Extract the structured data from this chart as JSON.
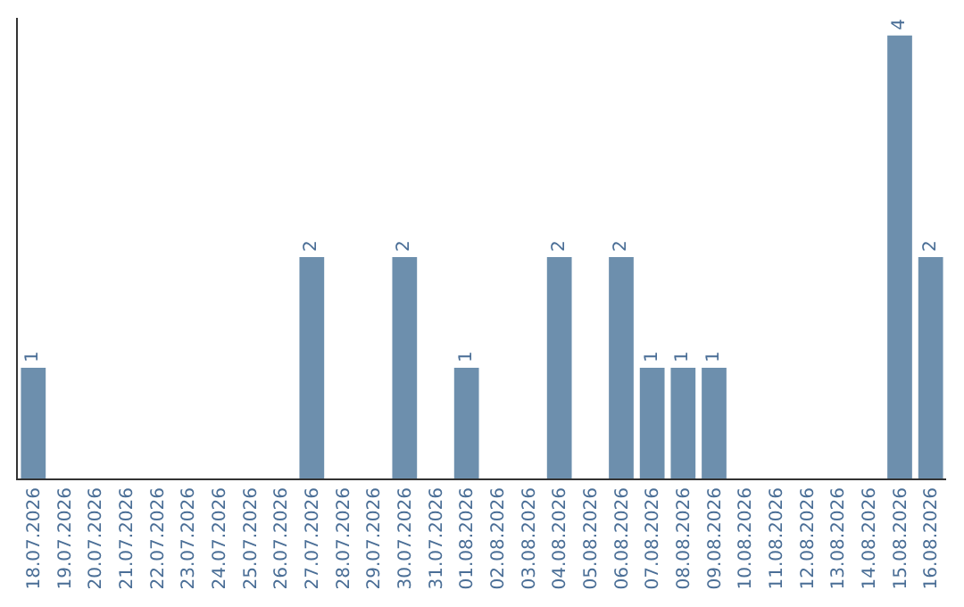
{
  "chart_data": {
    "type": "bar",
    "categories": [
      "18.07.2026",
      "19.07.2026",
      "20.07.2026",
      "21.07.2026",
      "22.07.2026",
      "23.07.2026",
      "24.07.2026",
      "25.07.2026",
      "26.07.2026",
      "27.07.2026",
      "28.07.2026",
      "29.07.2026",
      "30.07.2026",
      "31.07.2026",
      "01.08.2026",
      "02.08.2026",
      "03.08.2026",
      "04.08.2026",
      "05.08.2026",
      "06.08.2026",
      "07.08.2026",
      "08.08.2026",
      "09.08.2026",
      "10.08.2026",
      "11.08.2026",
      "12.08.2026",
      "13.08.2026",
      "14.08.2026",
      "15.08.2026",
      "16.08.2026"
    ],
    "values": [
      1,
      0,
      0,
      0,
      0,
      0,
      0,
      0,
      0,
      2,
      0,
      0,
      2,
      0,
      1,
      0,
      0,
      2,
      0,
      2,
      1,
      1,
      1,
      0,
      0,
      0,
      0,
      0,
      4,
      2
    ],
    "value_labels": [
      "1",
      null,
      null,
      null,
      null,
      null,
      null,
      null,
      null,
      "2",
      null,
      null,
      "2",
      null,
      "1",
      null,
      null,
      "2",
      null,
      "2",
      "1",
      "1",
      "1",
      null,
      null,
      null,
      null,
      null,
      "4",
      "2"
    ],
    "color": "#6d8fad",
    "tick_labels": "x"
  }
}
